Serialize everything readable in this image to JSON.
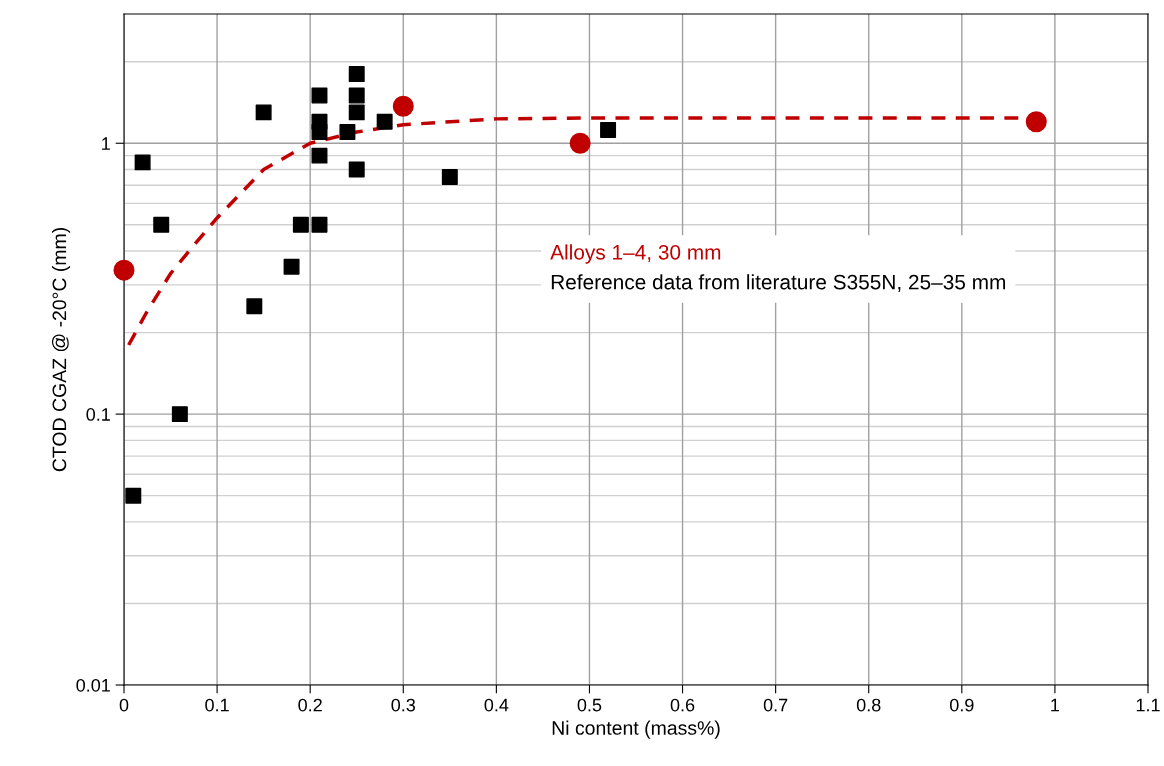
{
  "chart_data": {
    "type": "scatter",
    "xlabel": "Ni content (mass%)",
    "ylabel": "CTOD CGAZ @ -20°C (mm)",
    "series": [
      {
        "name": "Reference data from literature S355N, 25–35 mm",
        "color": "#000000",
        "marker": "square",
        "x": [
          0.01,
          0.02,
          0.04,
          0.06,
          0.14,
          0.15,
          0.18,
          0.19,
          0.21,
          0.21,
          0.21,
          0.21,
          0.21,
          0.24,
          0.25,
          0.25,
          0.25,
          0.25,
          0.28,
          0.35,
          0.52
        ],
        "values": [
          0.05,
          0.85,
          0.5,
          0.1,
          0.25,
          1.3,
          0.35,
          0.5,
          1.5,
          1.2,
          1.1,
          0.9,
          0.5,
          1.1,
          1.8,
          1.5,
          1.3,
          0.8,
          1.2,
          0.75,
          1.12
        ]
      },
      {
        "color": "#c00000",
        "type": "line",
        "line_style": "dashed",
        "marker": "none",
        "x": [
          0.005,
          0.025,
          0.05,
          0.075,
          0.1,
          0.15,
          0.2,
          0.25,
          0.3,
          0.4,
          0.5,
          0.6,
          0.7,
          0.8,
          0.9,
          0.98
        ],
        "values": [
          0.18,
          0.24,
          0.33,
          0.42,
          0.53,
          0.8,
          1.0,
          1.1,
          1.17,
          1.23,
          1.24,
          1.24,
          1.24,
          1.24,
          1.24,
          1.24
        ]
      },
      {
        "name": "Alloys 1–4, 30 mm",
        "color": "#c00000",
        "marker": "circle",
        "x": [
          0,
          0.3,
          0.49,
          0.98
        ],
        "values": [
          0.34,
          1.37,
          1.0,
          1.2
        ]
      }
    ],
    "log": "y",
    "xlim": [
      0,
      1.1
    ],
    "ylim": [
      0.01,
      3
    ],
    "xticks": [
      0,
      0.1,
      0.2,
      0.3,
      0.4,
      0.5,
      0.6,
      0.7,
      0.8,
      0.9,
      1,
      1.1
    ],
    "yticks": [
      0.01,
      0.1,
      1
    ],
    "grid": true,
    "legend": "right"
  }
}
